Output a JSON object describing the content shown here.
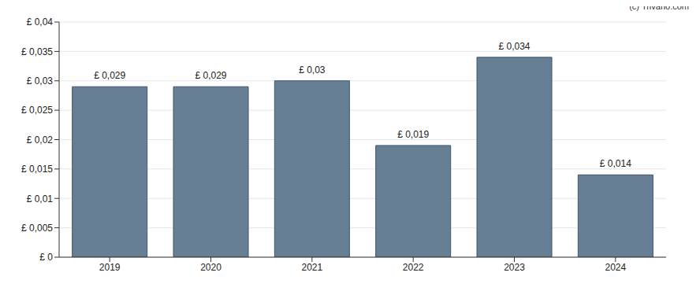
{
  "chart_data": {
    "type": "bar",
    "annotation": "(c) Trivano.com",
    "categories": [
      "2019",
      "2020",
      "2021",
      "2022",
      "2023",
      "2024"
    ],
    "values": [
      0.029,
      0.029,
      0.03,
      0.019,
      0.034,
      0.014
    ],
    "value_labels": [
      "£ 0,029",
      "£ 0,029",
      "£ 0,03",
      "£ 0,019",
      "£ 0,034",
      "£ 0,014"
    ],
    "data_labels": true,
    "color": "#667f94",
    "ylim": [
      0,
      0.04
    ],
    "yticks": [
      {
        "value": 0,
        "label": "£ 0"
      },
      {
        "value": 0.005,
        "label": "£ 0,005"
      },
      {
        "value": 0.01,
        "label": "£ 0,01"
      },
      {
        "value": 0.015,
        "label": "£ 0,015"
      },
      {
        "value": 0.02,
        "label": "£ 0,02"
      },
      {
        "value": 0.025,
        "label": "£ 0,025"
      },
      {
        "value": 0.03,
        "label": "£ 0,03"
      },
      {
        "value": 0.035,
        "label": "£ 0,035"
      },
      {
        "value": 0.04,
        "label": "£ 0,04"
      }
    ],
    "grid": true
  }
}
